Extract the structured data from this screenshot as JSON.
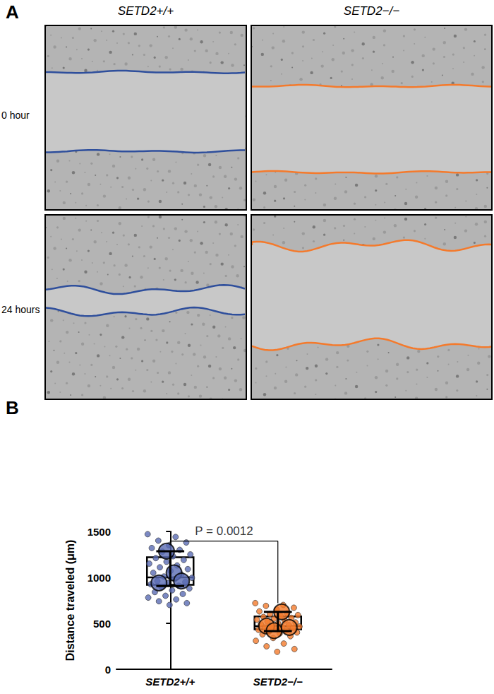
{
  "panel_a": {
    "label": "A",
    "columns": [
      "SETD2+/+",
      "SETD2−/−"
    ],
    "rows": [
      "0 hour",
      "24 hours"
    ]
  },
  "chart_data": {
    "label": "B",
    "type": "box",
    "categories": [
      "SETD2+/+",
      "SETD2−/−"
    ],
    "colors": [
      "#5a6cb4",
      "#f47a2c"
    ],
    "y_label": "Distance traveled (μm)",
    "ylim": [
      0,
      1500
    ],
    "yticks": [
      0,
      500,
      1000,
      1500
    ],
    "box": {
      "q1": [
        920,
        435
      ],
      "median": [
        1000,
        470
      ],
      "q3": [
        1220,
        575
      ]
    },
    "points": [
      [
        1470,
        1440,
        1400,
        1380,
        1350,
        1320,
        1300,
        1280,
        1250,
        1230,
        1210,
        1190,
        1170,
        1150,
        1130,
        1110,
        1090,
        1070,
        1050,
        1030,
        1010,
        995,
        980,
        960,
        950,
        940,
        925,
        910,
        895,
        880,
        860,
        840,
        820,
        800,
        780,
        760,
        740,
        720,
        700
      ],
      [
        720,
        700,
        690,
        670,
        650,
        630,
        610,
        600,
        590,
        580,
        570,
        560,
        550,
        540,
        530,
        520,
        510,
        500,
        490,
        480,
        470,
        465,
        460,
        455,
        450,
        440,
        430,
        420,
        410,
        400,
        390,
        380,
        360,
        340,
        310,
        280,
        250,
        220,
        190
      ]
    ],
    "replicates": [
      [
        940,
        1285,
        1050,
        960
      ],
      [
        470,
        420,
        625,
        455
      ]
    ],
    "error_bars": {
      "low": [
        905,
        415
      ],
      "high": [
        1285,
        625
      ]
    },
    "annotation": "P = 0.0012"
  }
}
